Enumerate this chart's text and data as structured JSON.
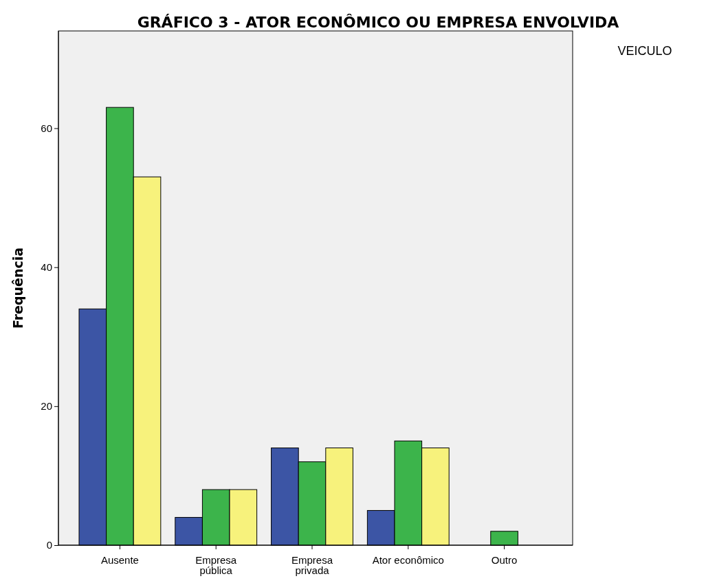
{
  "chart_data": {
    "type": "bar",
    "title": "GRÁFICO 3 - ATOR ECONÔMICO OU EMPRESA ENVOLVIDA",
    "ylabel": "Frequência",
    "legend_title": "VEICULO",
    "categories": [
      "Ausente",
      "Empresa\npública",
      "Empresa\nprivada",
      "Ator econômico",
      "Outro"
    ],
    "series": [
      {
        "color": "#3c55a5",
        "values": [
          34,
          4,
          14,
          5,
          null
        ]
      },
      {
        "color": "#3cb44b",
        "values": [
          63,
          8,
          12,
          15,
          2
        ]
      },
      {
        "color": "#f7f27c",
        "values": [
          53,
          8,
          14,
          14,
          null
        ]
      }
    ],
    "ylim": [
      0,
      74
    ],
    "yticks": [
      0,
      20,
      40,
      60
    ],
    "grid": false
  }
}
